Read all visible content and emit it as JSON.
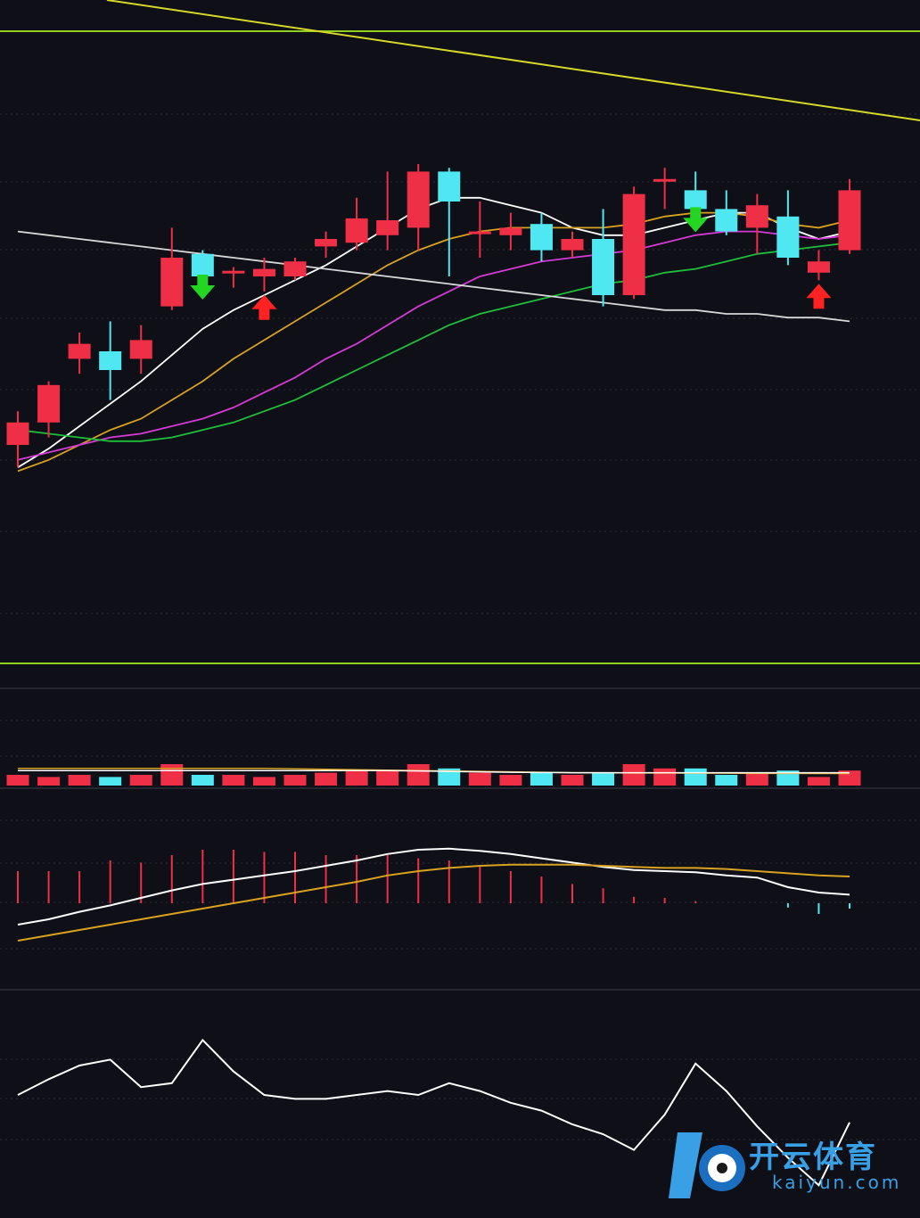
{
  "colors": {
    "background": "#0e0f17",
    "up": "#ef2f45",
    "down": "#4fe8f2",
    "ma5": "#ffffff",
    "ma10": "#d9a21f",
    "ma20": "#d63ad6",
    "ma30": "#1fbf3a",
    "ma60": "#d8d8d8",
    "trend": "#d8d82a",
    "separator": "#8fd01e",
    "buy_arrow": "#ff2222",
    "sell_arrow": "#22d622",
    "watermark": "#3aa0e6"
  },
  "chart_data": [
    {
      "type": "candlestick",
      "panel": "price",
      "grid": true,
      "ylim": [
        0,
        100
      ],
      "candles": [
        {
          "o": 30.0,
          "c": 36.0,
          "h": 39.0,
          "l": 24.0
        },
        {
          "o": 36.0,
          "c": 46.0,
          "h": 47.0,
          "l": 32.0
        },
        {
          "o": 53.0,
          "c": 57.0,
          "h": 60.0,
          "l": 49.0
        },
        {
          "o": 55.0,
          "c": 50.0,
          "h": 63.0,
          "l": 42.0
        },
        {
          "o": 53.0,
          "c": 58.0,
          "h": 62.0,
          "l": 49.0
        },
        {
          "o": 67.0,
          "c": 80.0,
          "h": 88.0,
          "l": 66.0
        },
        {
          "o": 81.0,
          "c": 75.0,
          "h": 82.0,
          "l": 74.0
        },
        {
          "o": 76.0,
          "c": 76.5,
          "h": 77.5,
          "l": 72.0
        },
        {
          "o": 75.0,
          "c": 77.0,
          "h": 80.0,
          "l": 71.0
        },
        {
          "o": 75.0,
          "c": 79.0,
          "h": 80.0,
          "l": 74.0
        },
        {
          "o": 83.0,
          "c": 85.0,
          "h": 87.0,
          "l": 80.0
        },
        {
          "o": 84.0,
          "c": 90.5,
          "h": 96.0,
          "l": 82.0
        },
        {
          "o": 86.0,
          "c": 90.0,
          "h": 103.0,
          "l": 82.0
        },
        {
          "o": 88.0,
          "c": 103.0,
          "h": 105.0,
          "l": 82.0
        },
        {
          "o": 103.0,
          "c": 95.0,
          "h": 104.0,
          "l": 75.0
        },
        {
          "o": 87.0,
          "c": 87.0,
          "h": 95.0,
          "l": 80.0
        },
        {
          "o": 86.0,
          "c": 88.0,
          "h": 92.0,
          "l": 82.0
        },
        {
          "o": 89.0,
          "c": 82.0,
          "h": 92.0,
          "l": 79.0
        },
        {
          "o": 82.0,
          "c": 85.0,
          "h": 87.0,
          "l": 80.0
        },
        {
          "o": 85.0,
          "c": 70.0,
          "h": 93.0,
          "l": 67.0
        },
        {
          "o": 70.0,
          "c": 97.0,
          "h": 99.0,
          "l": 69.0
        },
        {
          "o": 101.0,
          "c": 101.0,
          "h": 104.0,
          "l": 93.0
        },
        {
          "o": 98.0,
          "c": 93.0,
          "h": 103.0,
          "l": 91.0
        },
        {
          "o": 93.0,
          "c": 87.0,
          "h": 98.0,
          "l": 86.0
        },
        {
          "o": 88.0,
          "c": 94.0,
          "h": 97.0,
          "l": 81.0
        },
        {
          "o": 91.0,
          "c": 80.0,
          "h": 98.0,
          "l": 78.0
        },
        {
          "o": 76.0,
          "c": 79.0,
          "h": 82.0,
          "l": 74.0
        },
        {
          "o": 82.0,
          "c": 98.0,
          "h": 101.0,
          "l": 81.0
        }
      ],
      "markers": [
        {
          "index": 6,
          "kind": "sell"
        },
        {
          "index": 8,
          "kind": "buy"
        },
        {
          "index": 22,
          "kind": "sell"
        },
        {
          "index": 26,
          "kind": "buy"
        }
      ],
      "series": [
        {
          "key": "ma5",
          "values": [
            24,
            29,
            35,
            41,
            47,
            54,
            61,
            66,
            70,
            74,
            78,
            83,
            88,
            93,
            96,
            96,
            94,
            92,
            88,
            86,
            86,
            88,
            90,
            92,
            92,
            88,
            85,
            87
          ]
        },
        {
          "key": "ma10",
          "values": [
            23,
            26,
            30,
            34,
            37,
            42,
            47,
            53,
            58,
            63,
            68,
            73,
            78,
            82,
            85,
            87,
            88,
            88,
            88,
            88,
            89,
            91,
            92,
            92,
            91,
            89,
            88,
            90
          ]
        },
        {
          "key": "ma20",
          "values": [
            26,
            28,
            30,
            32,
            33,
            35,
            37,
            40,
            44,
            48,
            53,
            57,
            62,
            67,
            71,
            75,
            77,
            79,
            80,
            81,
            82,
            84,
            86,
            87,
            87,
            86,
            85,
            86
          ]
        },
        {
          "key": "ma30",
          "values": [
            34,
            33,
            32,
            31,
            31,
            32,
            34,
            36,
            39,
            42,
            46,
            50,
            54,
            58,
            62,
            65,
            67,
            69,
            71,
            73,
            74,
            76,
            77,
            79,
            81,
            82,
            83,
            84
          ]
        },
        {
          "key": "ma60",
          "values": [
            87,
            86,
            85,
            84,
            83,
            82,
            81,
            80,
            79,
            78,
            77,
            76,
            75,
            74,
            73,
            72,
            71,
            70,
            69,
            68,
            67,
            66,
            66,
            65,
            65,
            64,
            64,
            63
          ]
        }
      ]
    },
    {
      "type": "bar",
      "panel": "volume",
      "values": [
        5,
        4,
        5,
        4,
        5,
        10,
        5,
        5,
        4,
        5,
        6,
        7,
        7,
        10,
        8,
        6,
        5,
        6,
        5,
        6,
        10,
        8,
        8,
        5,
        6,
        7,
        4,
        7
      ],
      "ma_lines": [
        {
          "key": "vol_ma5",
          "values": [
            8,
            8,
            8,
            8,
            8,
            8,
            8,
            8,
            8,
            7.8,
            7.6,
            7.4,
            7.2,
            7.0,
            6.8,
            6.6,
            6.4,
            6.2,
            6.0,
            6.0,
            5.9,
            5.9,
            5.8,
            5.8,
            5.7,
            5.7,
            5.6,
            5.6
          ]
        },
        {
          "key": "vol_ma10",
          "values": [
            7,
            7,
            7,
            7,
            7,
            7,
            7,
            7,
            7,
            7,
            7,
            7,
            7,
            6.8,
            6.6,
            6.4,
            6.2,
            6.1,
            6.0,
            6.0,
            6.0,
            6.0,
            6.0,
            6.0,
            6.0,
            6.0,
            6.0,
            6.0
          ]
        }
      ]
    },
    {
      "type": "line",
      "panel": "macd",
      "histogram": [
        30,
        30,
        30,
        40,
        38,
        45,
        50,
        50,
        48,
        48,
        45,
        45,
        45,
        42,
        40,
        35,
        30,
        25,
        18,
        14,
        6,
        5,
        2,
        0,
        0,
        -4,
        -10,
        -5
      ],
      "series": [
        {
          "key": "dif",
          "values": [
            -20,
            -15,
            -8,
            -2,
            5,
            12,
            18,
            22,
            26,
            30,
            35,
            40,
            46,
            50,
            51,
            49,
            46,
            42,
            38,
            34,
            31,
            30,
            29,
            26,
            24,
            15,
            10,
            8
          ]
        },
        {
          "key": "dea",
          "values": [
            -35,
            -30,
            -25,
            -20,
            -15,
            -10,
            -5,
            0,
            5,
            10,
            15,
            20,
            26,
            30,
            33,
            35,
            36,
            36,
            36,
            35,
            34,
            33,
            33,
            32,
            30,
            28,
            26,
            25
          ]
        }
      ]
    },
    {
      "type": "line",
      "panel": "indicator",
      "series": [
        {
          "key": "osc",
          "values": [
            60,
            68,
            75,
            78,
            64,
            66,
            88,
            72,
            60,
            58,
            58,
            60,
            62,
            60,
            66,
            62,
            56,
            52,
            45,
            40,
            32,
            50,
            76,
            62,
            44,
            28,
            14,
            46
          ]
        }
      ]
    }
  ],
  "watermark": {
    "cn": "开云体育",
    "en": "kaiyun.com"
  }
}
